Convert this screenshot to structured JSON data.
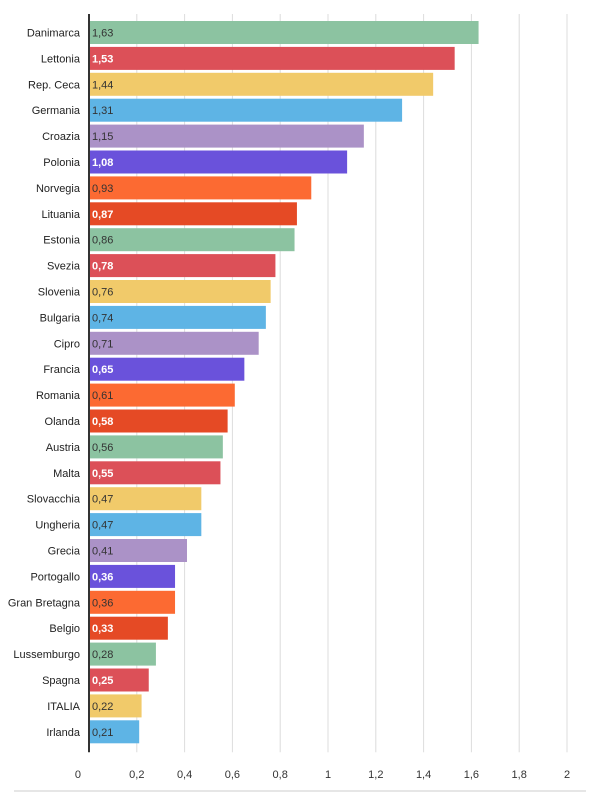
{
  "chart_data": {
    "type": "bar",
    "orientation": "horizontal",
    "title": "",
    "xlabel": "",
    "ylabel": "",
    "xlim": [
      0,
      2
    ],
    "x_ticks": [
      "0",
      "0,2",
      "0,4",
      "0,6",
      "0,8",
      "1",
      "1,2",
      "1,4",
      "1,6",
      "1,8",
      "2"
    ],
    "grid": "vertical",
    "legend": "none",
    "categories": [
      "Danimarca",
      "Lettonia",
      "Rep. Ceca",
      "Germania",
      "Croazia",
      "Polonia",
      "Norvegia",
      "Lituania",
      "Estonia",
      "Svezia",
      "Slovenia",
      "Bulgaria",
      "Cipro",
      "Francia",
      "Romania",
      "Olanda",
      "Austria",
      "Malta",
      "Slovacchia",
      "Ungheria",
      "Grecia",
      "Portogallo",
      "Gran Bretagna",
      "Belgio",
      "Lussemburgo",
      "Spagna",
      "ITALIA",
      "Irlanda"
    ],
    "values": [
      1.63,
      1.53,
      1.44,
      1.31,
      1.15,
      1.08,
      0.93,
      0.87,
      0.86,
      0.78,
      0.76,
      0.74,
      0.71,
      0.65,
      0.61,
      0.58,
      0.56,
      0.55,
      0.47,
      0.47,
      0.41,
      0.36,
      0.36,
      0.33,
      0.28,
      0.25,
      0.22,
      0.21
    ],
    "value_labels": [
      "1,63",
      "1,53",
      "1,44",
      "1,31",
      "1,15",
      "1,08",
      "0,93",
      "0,87",
      "0,86",
      "0,78",
      "0,76",
      "0,74",
      "0,71",
      "0,65",
      "0,61",
      "0,58",
      "0,56",
      "0,55",
      "0,47",
      "0,47",
      "0,41",
      "0,36",
      "0,36",
      "0,33",
      "0,28",
      "0,25",
      "0,22",
      "0,21"
    ],
    "bar_colors": [
      "#8cc3a1",
      "#dc5058",
      "#f1ca6a",
      "#5eb4e5",
      "#ab92c7",
      "#6a52db",
      "#fc6a32",
      "#e54a25"
    ],
    "label_text_colors": [
      "#333333",
      "#ffffff",
      "#333333",
      "#333333",
      "#333333",
      "#ffffff",
      "#333333",
      "#ffffff"
    ]
  }
}
